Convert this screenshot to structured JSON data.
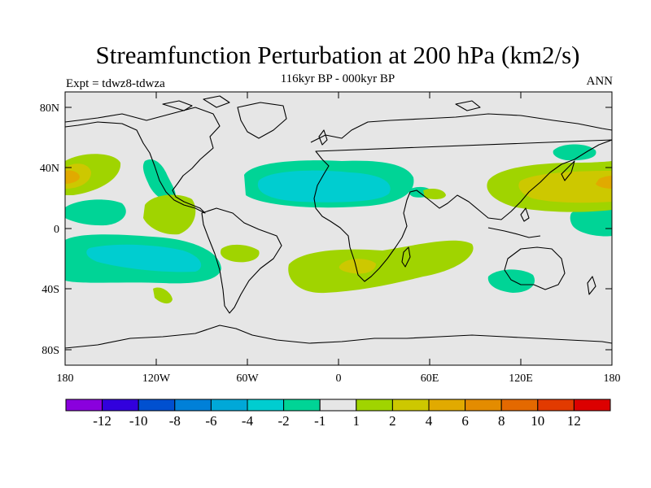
{
  "title": "Streamfunction Perturbation at 200 hPa (km2/s)",
  "subtitle": "116kyr BP - 000kyr BP",
  "experiment": "Expt = tdwz8-tdwza",
  "period": "ANN",
  "axes": {
    "x_ticks": [
      "180",
      "120W",
      "60W",
      "0",
      "60E",
      "120E",
      "180"
    ],
    "y_ticks": [
      "80N",
      "40N",
      "0",
      "40S",
      "80S"
    ]
  },
  "colors": {
    "background": "#e6e6e6",
    "neg_1_2": "#00d496",
    "neg_2_4": "#00cdd0",
    "pos_1_2": "#a0d400",
    "pos_2_4": "#cdc800",
    "pos_4_6": "#e1aa00"
  },
  "colorbar": {
    "colors": [
      "#8a00dd",
      "#3200dd",
      "#0050d0",
      "#0080d8",
      "#00a8d8",
      "#00cdd0",
      "#00d496",
      "#e6e6e6",
      "#a0d400",
      "#cdc800",
      "#e1aa00",
      "#e48c00",
      "#e46900",
      "#e23a00",
      "#dc0000"
    ],
    "labels": [
      "-12",
      "-10",
      "-8",
      "-6",
      "-4",
      "-2",
      "-1",
      "1",
      "2",
      "4",
      "6",
      "8",
      "10",
      "12"
    ]
  }
}
